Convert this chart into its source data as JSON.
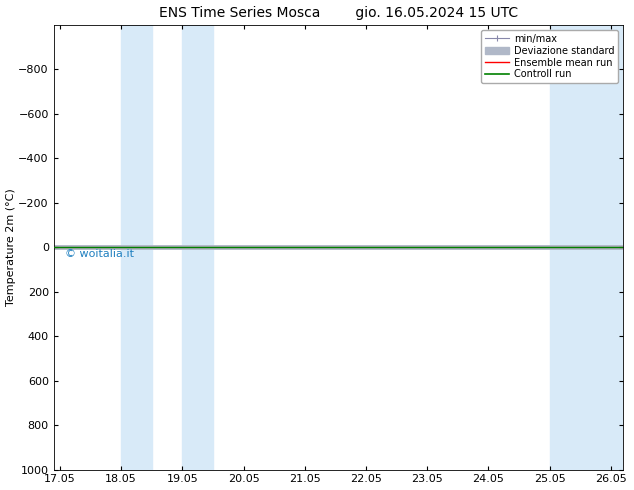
{
  "title_left": "ENS Time Series Mosca",
  "title_right": "gio. 16.05.2024 15 UTC",
  "ylabel": "Temperature 2m (°C)",
  "ylim": [
    -1000,
    1000
  ],
  "yticks": [
    -800,
    -600,
    -400,
    -200,
    0,
    200,
    400,
    600,
    800,
    1000
  ],
  "x_start_num": 0,
  "x_end_num": 9,
  "xtick_positions": [
    0,
    1,
    2,
    3,
    4,
    5,
    6,
    7,
    8,
    9
  ],
  "xtick_labels": [
    "17.05",
    "18.05",
    "19.05",
    "20.05",
    "21.05",
    "22.05",
    "23.05",
    "24.05",
    "25.05",
    "26.05"
  ],
  "blue_bands": [
    [
      1,
      1.5
    ],
    [
      2,
      2.5
    ],
    [
      8,
      8.5
    ],
    [
      8.5,
      9.2
    ]
  ],
  "line_y": 0,
  "ensemble_mean_color": "#ff0000",
  "control_run_color": "#008000",
  "minmax_color": "#8888aa",
  "std_color": "#b0b8c8",
  "band_color": "#d8eaf8",
  "watermark": "© woitalia.it",
  "watermark_color": "#2080c0",
  "legend_labels": [
    "min/max",
    "Deviazione standard",
    "Ensemble mean run",
    "Controll run"
  ],
  "background_color": "#ffffff",
  "title_fontsize": 10,
  "axis_fontsize": 8,
  "tick_fontsize": 8
}
